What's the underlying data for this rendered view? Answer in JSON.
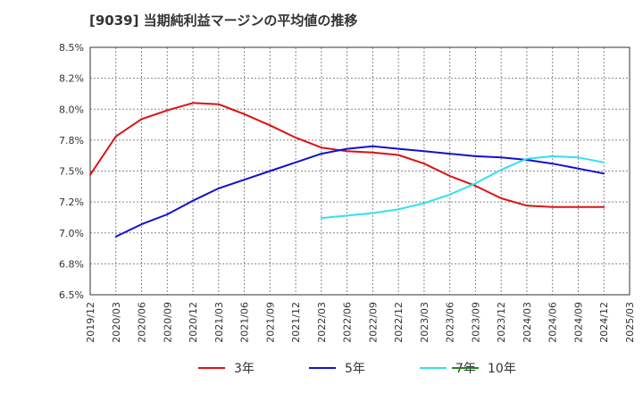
{
  "chart_data": {
    "type": "line",
    "title": "[9039]  当期純利益マージンの平均値の推移",
    "ylim": [
      6.5,
      8.5
    ],
    "yticks": [
      "8.5%",
      "8.2%",
      "8.0%",
      "7.8%",
      "7.5%",
      "7.2%",
      "7.0%",
      "6.8%",
      "6.5%"
    ],
    "xticks": [
      "2019/12",
      "2020/03",
      "2020/06",
      "2020/09",
      "2020/12",
      "2021/03",
      "2021/06",
      "2021/09",
      "2021/12",
      "2022/03",
      "2022/06",
      "2022/09",
      "2022/12",
      "2023/03",
      "2023/06",
      "2023/09",
      "2023/12",
      "2024/03",
      "2024/06",
      "2024/09",
      "2024/12",
      "2025/03"
    ],
    "grid": true,
    "legend_position": "bottom",
    "series": [
      {
        "name": "3年",
        "color": "#dd1111",
        "x": [
          "2019/12",
          "2020/03",
          "2020/06",
          "2020/09",
          "2020/12",
          "2021/03",
          "2021/06",
          "2021/09",
          "2021/12",
          "2022/03",
          "2022/06",
          "2022/09",
          "2022/12",
          "2023/03",
          "2023/06",
          "2023/09",
          "2023/12",
          "2024/03",
          "2024/06",
          "2024/09",
          "2024/12"
        ],
        "values": [
          7.47,
          7.78,
          7.92,
          7.99,
          8.05,
          8.04,
          7.96,
          7.87,
          7.77,
          7.69,
          7.66,
          7.65,
          7.63,
          7.56,
          7.46,
          7.38,
          7.28,
          7.22,
          7.21,
          7.21,
          7.21
        ]
      },
      {
        "name": "5年",
        "color": "#1111cc",
        "x": [
          "2020/03",
          "2020/06",
          "2020/09",
          "2020/12",
          "2021/03",
          "2021/06",
          "2021/09",
          "2021/12",
          "2022/03",
          "2022/06",
          "2022/09",
          "2022/12",
          "2023/03",
          "2023/06",
          "2023/09",
          "2023/12",
          "2024/03",
          "2024/06",
          "2024/09",
          "2024/12"
        ],
        "values": [
          6.97,
          7.07,
          7.15,
          7.26,
          7.36,
          7.43,
          7.5,
          7.57,
          7.64,
          7.68,
          7.7,
          7.68,
          7.66,
          7.64,
          7.62,
          7.61,
          7.59,
          7.56,
          7.52,
          7.48
        ]
      },
      {
        "name": "7年",
        "color": "#33e0f0",
        "x": [
          "2022/03",
          "2022/06",
          "2022/09",
          "2022/12",
          "2023/03",
          "2023/06",
          "2023/09",
          "2023/12",
          "2024/03",
          "2024/06",
          "2024/09",
          "2024/12"
        ],
        "values": [
          7.12,
          7.14,
          7.16,
          7.19,
          7.24,
          7.31,
          7.4,
          7.51,
          7.6,
          7.62,
          7.61,
          7.57
        ]
      },
      {
        "name": "10年",
        "color": "#228822",
        "x": [],
        "values": []
      }
    ]
  }
}
